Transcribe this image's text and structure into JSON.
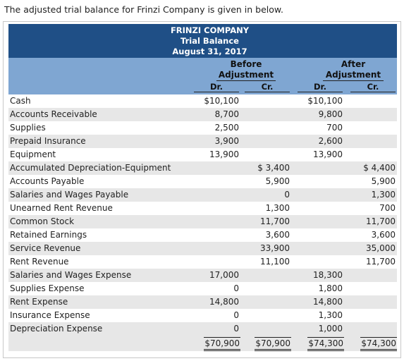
{
  "intro": "The adjusted trial balance for Frinzi Company is given in below.",
  "header": {
    "company": "FRINZI COMPANY",
    "title": "Trial Balance",
    "date": "August 31, 2017"
  },
  "groups": {
    "before_1": "Before",
    "before_2": "Adjustment",
    "after_1": "After",
    "after_2": "Adjustment"
  },
  "subheads": {
    "dr1": "Dr.",
    "cr1": "Cr.",
    "dr2": "Dr.",
    "cr2": "Cr."
  },
  "rows": [
    {
      "account": "Cash",
      "b_dr": "$10,100",
      "b_cr": "",
      "a_dr": "$10,100",
      "a_cr": ""
    },
    {
      "account": "Accounts Receivable",
      "b_dr": "8,700",
      "b_cr": "",
      "a_dr": "9,800",
      "a_cr": ""
    },
    {
      "account": "Supplies",
      "b_dr": "2,500",
      "b_cr": "",
      "a_dr": "700",
      "a_cr": ""
    },
    {
      "account": "Prepaid Insurance",
      "b_dr": "3,900",
      "b_cr": "",
      "a_dr": "2,600",
      "a_cr": ""
    },
    {
      "account": "Equipment",
      "b_dr": "13,900",
      "b_cr": "",
      "a_dr": "13,900",
      "a_cr": ""
    },
    {
      "account": "Accumulated Depreciation-Equipment",
      "b_dr": "",
      "b_cr": "$ 3,400",
      "a_dr": "",
      "a_cr": "$ 4,400"
    },
    {
      "account": "Accounts Payable",
      "b_dr": "",
      "b_cr": "5,900",
      "a_dr": "",
      "a_cr": "5,900"
    },
    {
      "account": "Salaries and Wages Payable",
      "b_dr": "",
      "b_cr": "0",
      "a_dr": "",
      "a_cr": "1,300"
    },
    {
      "account": "Unearned Rent Revenue",
      "b_dr": "",
      "b_cr": "1,300",
      "a_dr": "",
      "a_cr": "700"
    },
    {
      "account": "Common Stock",
      "b_dr": "",
      "b_cr": "11,700",
      "a_dr": "",
      "a_cr": "11,700"
    },
    {
      "account": "Retained Earnings",
      "b_dr": "",
      "b_cr": "3,600",
      "a_dr": "",
      "a_cr": "3,600"
    },
    {
      "account": "Service Revenue",
      "b_dr": "",
      "b_cr": "33,900",
      "a_dr": "",
      "a_cr": "35,000"
    },
    {
      "account": "Rent Revenue",
      "b_dr": "",
      "b_cr": "11,100",
      "a_dr": "",
      "a_cr": "11,700"
    },
    {
      "account": "Salaries and Wages Expense",
      "b_dr": "17,000",
      "b_cr": "",
      "a_dr": "18,300",
      "a_cr": ""
    },
    {
      "account": "Supplies Expense",
      "b_dr": "0",
      "b_cr": "",
      "a_dr": "1,800",
      "a_cr": ""
    },
    {
      "account": "Rent Expense",
      "b_dr": "14,800",
      "b_cr": "",
      "a_dr": "14,800",
      "a_cr": ""
    },
    {
      "account": "Insurance Expense",
      "b_dr": "0",
      "b_cr": "",
      "a_dr": "1,300",
      "a_cr": ""
    },
    {
      "account": "Depreciation Expense",
      "b_dr": "0",
      "b_cr": "",
      "a_dr": "1,000",
      "a_cr": ""
    }
  ],
  "totals": {
    "b_dr": "$70,900",
    "b_cr": "$70,900",
    "a_dr": "$74,300",
    "a_cr": "$74,300"
  },
  "colors": {
    "header_dark": "#1f4f86",
    "header_light": "#7fa6d2",
    "stripe": "#e7e7e7"
  }
}
